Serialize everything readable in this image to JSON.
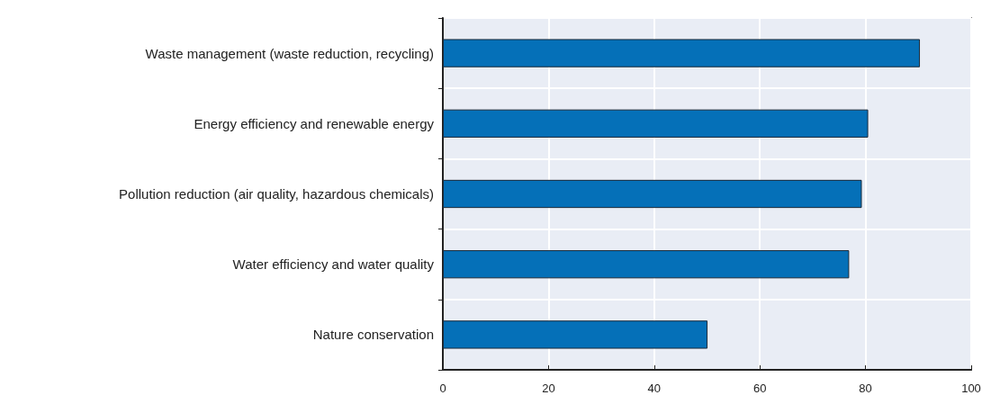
{
  "chart_data": {
    "type": "bar",
    "orientation": "horizontal",
    "categories": [
      "Waste management (waste reduction, recycling)",
      "Energy efficiency and renewable energy",
      "Pollution reduction (air quality, hazardous chemicals)",
      "Water efficiency and water quality",
      "Nature conservation"
    ],
    "values": [
      90.3,
      80.5,
      79.3,
      76.9,
      50.1
    ],
    "color": "#0570b8",
    "xlim": [
      0,
      100
    ],
    "xticks": [
      0,
      20,
      40,
      60,
      80,
      100
    ],
    "grid": true
  }
}
